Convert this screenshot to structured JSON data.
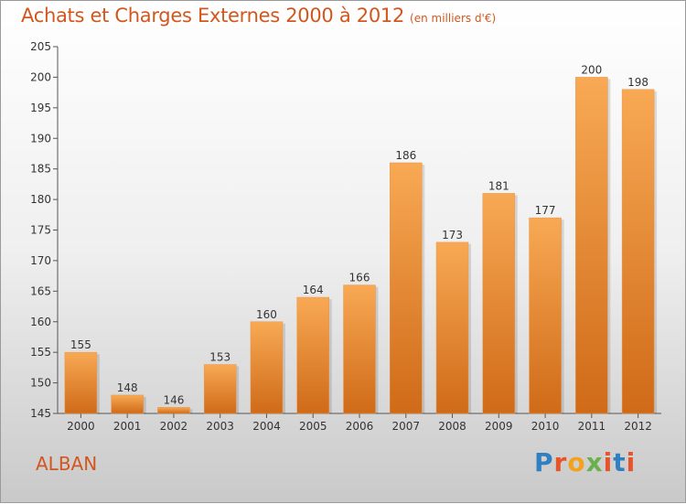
{
  "header": {
    "title": "Achats et Charges Externes 2000 à 2012",
    "subtitle": "(en milliers d'€)"
  },
  "footer": {
    "commune": "ALBAN",
    "logo_text": "Proxiti",
    "logo_colors": [
      "#2f7fc1",
      "#e8542a",
      "#f2a21c",
      "#6ab04c",
      "#e8542a",
      "#2f7fc1",
      "#e8542a"
    ]
  },
  "colors": {
    "title": "#d2571e",
    "bar_light": "#f8a954",
    "bar_dark": "#cf6a18",
    "axis": "#555555"
  },
  "chart_data": {
    "type": "bar",
    "categories": [
      "2000",
      "2001",
      "2002",
      "2003",
      "2004",
      "2005",
      "2006",
      "2007",
      "2008",
      "2009",
      "2010",
      "2011",
      "2012"
    ],
    "values": [
      155,
      148,
      146,
      153,
      160,
      164,
      166,
      186,
      173,
      181,
      177,
      200,
      198
    ],
    "ylim": [
      145,
      205
    ],
    "yticks": [
      145,
      150,
      155,
      160,
      165,
      170,
      175,
      180,
      185,
      190,
      195,
      200,
      205
    ],
    "grid": false,
    "data_labels": true
  }
}
